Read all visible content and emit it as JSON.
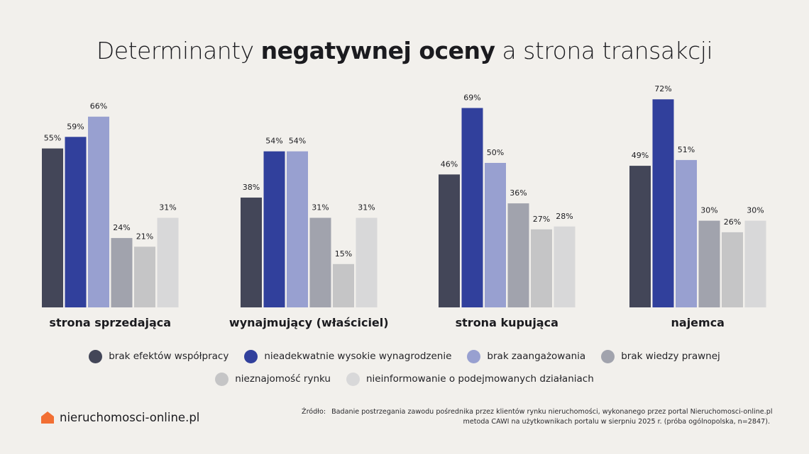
{
  "title": {
    "pre": "Determinanty ",
    "bold": "negatywnej oceny",
    "post": " a strona transakcji"
  },
  "colors": {
    "background": "#f2f0ec",
    "series": [
      "#434658",
      "#31409c",
      "#98a0d0",
      "#a1a3ad",
      "#c5c5c6",
      "#d8d8d9"
    ],
    "logo": "#f26f33"
  },
  "chart_data": {
    "type": "bar",
    "title": "Determinanty negatywnej oceny a strona transakcji",
    "xlabel": "",
    "ylabel": "",
    "ylim": [
      0,
      75
    ],
    "grid": false,
    "legend_position": "bottom",
    "value_suffix": "%",
    "categories": [
      "strona sprzedająca",
      "wynajmujący (właściciel)",
      "strona kupująca",
      "najemca"
    ],
    "series": [
      {
        "name": "brak efektów współpracy",
        "values": [
          55,
          38,
          46,
          49
        ]
      },
      {
        "name": "nieadekwatnie wysokie wynagrodzenie",
        "values": [
          59,
          54,
          69,
          72
        ]
      },
      {
        "name": "brak zaangażowania",
        "values": [
          66,
          54,
          50,
          51
        ]
      },
      {
        "name": "brak wiedzy prawnej",
        "values": [
          24,
          31,
          36,
          30
        ]
      },
      {
        "name": "nieznajomość rynku",
        "values": [
          21,
          15,
          27,
          26
        ]
      },
      {
        "name": "nieinformowanie o podejmowanych działaniach",
        "values": [
          31,
          31,
          28,
          30
        ]
      }
    ]
  },
  "legend": {
    "row1": [
      {
        "label": "brak efektów współpracy"
      },
      {
        "label": "nieadekwatnie wysokie wynagrodzenie"
      },
      {
        "label": "brak zaangażowania"
      },
      {
        "label": "brak wiedzy prawnej"
      }
    ],
    "row2": [
      {
        "label": "nieznajomość rynku"
      },
      {
        "label": "nieinformowanie o podejmowanych działaniach"
      }
    ]
  },
  "footer": {
    "logo_text": "nieruchomosci-online.pl",
    "logo_icon": "house-icon",
    "source_label": "Źródło:",
    "source_line1": "Badanie postrzegania zawodu pośrednika przez klientów rynku nieruchomości, wykonanego przez portal Nieruchomosci-online.pl",
    "source_line2": "metoda CAWI na użytkownikach portalu w sierpniu 2025 r. (próba ogólnopolska, n=2847)."
  }
}
